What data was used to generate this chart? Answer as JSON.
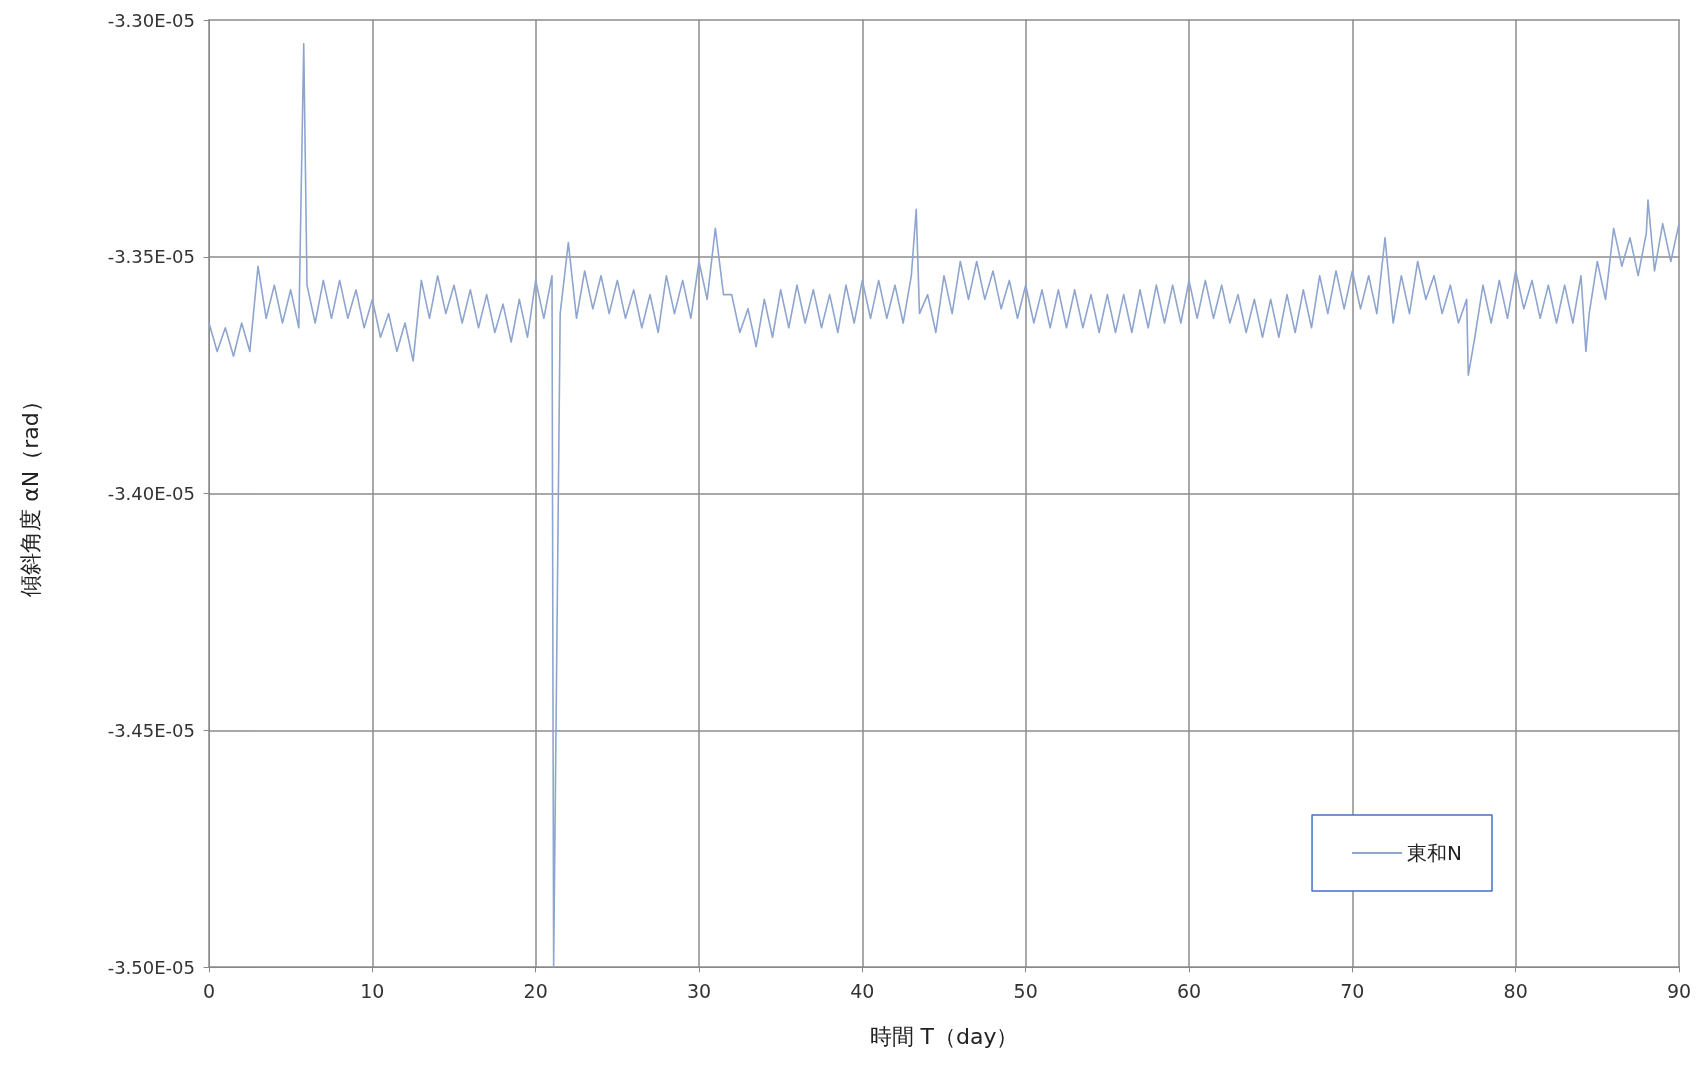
{
  "chart_data": {
    "type": "line",
    "xlabel": "時間 T（day）",
    "ylabel": "傾斜角度 αN（rad）",
    "xlim": [
      0,
      90
    ],
    "xticks": [
      0,
      10,
      20,
      30,
      40,
      50,
      60,
      70,
      80,
      90
    ],
    "ylim": [
      -3.5e-05,
      -3.3e-05
    ],
    "yticks": [
      {
        "value": -3.5e-05,
        "label": "-3.50E-05"
      },
      {
        "value": -3.45e-05,
        "label": "-3.45E-05"
      },
      {
        "value": -3.4e-05,
        "label": "-3.40E-05"
      },
      {
        "value": -3.35e-05,
        "label": "-3.35E-05"
      },
      {
        "value": -3.3e-05,
        "label": "-3.30E-05"
      }
    ],
    "grid": true,
    "legend": "bottom right",
    "marker": "none",
    "line_style": "solid",
    "series": [
      {
        "name": "東和N",
        "color": "#8ea5d0",
        "x": [
          0,
          0.5,
          1,
          1.5,
          2,
          2.5,
          3,
          3.5,
          4,
          4.5,
          5,
          5.5,
          5.8,
          6,
          6.5,
          7,
          7.5,
          8,
          8.5,
          9,
          9.5,
          10,
          10.5,
          11,
          11.5,
          12,
          12.5,
          13,
          13.5,
          14,
          14.5,
          15,
          15.5,
          16,
          16.5,
          17,
          17.5,
          18,
          18.5,
          19,
          19.5,
          20,
          20.5,
          21,
          21.1,
          21.5,
          22,
          22.5,
          23,
          23.5,
          24,
          24.5,
          25,
          25.5,
          26,
          26.5,
          27,
          27.5,
          28,
          28.5,
          29,
          29.5,
          30,
          30.5,
          31,
          31.5,
          32,
          32.5,
          33,
          33.5,
          34,
          34.5,
          35,
          35.5,
          36,
          36.5,
          37,
          37.5,
          38,
          38.5,
          39,
          39.5,
          40,
          40.5,
          41,
          41.5,
          42,
          42.5,
          43,
          43.3,
          43.5,
          44,
          44.5,
          45,
          45.5,
          46,
          46.5,
          47,
          47.5,
          48,
          48.5,
          49,
          49.5,
          50,
          50.5,
          51,
          51.5,
          52,
          52.5,
          53,
          53.5,
          54,
          54.5,
          55,
          55.5,
          56,
          56.5,
          57,
          57.5,
          58,
          58.5,
          59,
          59.5,
          60,
          60.5,
          61,
          61.5,
          62,
          62.5,
          63,
          63.5,
          64,
          64.5,
          65,
          65.5,
          66,
          66.5,
          67,
          67.5,
          68,
          68.5,
          69,
          69.5,
          70,
          70.5,
          71,
          71.5,
          72,
          72.5,
          73,
          73.5,
          74,
          74.5,
          75,
          75.5,
          76,
          76.5,
          77,
          77.1,
          77.5,
          78,
          78.5,
          79,
          79.5,
          80,
          80.5,
          81,
          81.5,
          82,
          82.5,
          83,
          83.5,
          84,
          84.3,
          84.5,
          85,
          85.5,
          86,
          86.5,
          87,
          87.5,
          88,
          88.1,
          88.5,
          89,
          89.5,
          90
        ],
        "values": [
          -3.364e-05,
          -3.37e-05,
          -3.365e-05,
          -3.371e-05,
          -3.364e-05,
          -3.37e-05,
          -3.352e-05,
          -3.363e-05,
          -3.356e-05,
          -3.364e-05,
          -3.357e-05,
          -3.365e-05,
          -3.305e-05,
          -3.356e-05,
          -3.364e-05,
          -3.355e-05,
          -3.363e-05,
          -3.355e-05,
          -3.363e-05,
          -3.357e-05,
          -3.365e-05,
          -3.359e-05,
          -3.367e-05,
          -3.362e-05,
          -3.37e-05,
          -3.364e-05,
          -3.372e-05,
          -3.355e-05,
          -3.363e-05,
          -3.354e-05,
          -3.362e-05,
          -3.356e-05,
          -3.364e-05,
          -3.357e-05,
          -3.365e-05,
          -3.358e-05,
          -3.366e-05,
          -3.36e-05,
          -3.368e-05,
          -3.359e-05,
          -3.367e-05,
          -3.355e-05,
          -3.363e-05,
          -3.354e-05,
          -3.5e-05,
          -3.362e-05,
          -3.347e-05,
          -3.363e-05,
          -3.353e-05,
          -3.361e-05,
          -3.354e-05,
          -3.362e-05,
          -3.355e-05,
          -3.363e-05,
          -3.357e-05,
          -3.365e-05,
          -3.358e-05,
          -3.366e-05,
          -3.354e-05,
          -3.362e-05,
          -3.355e-05,
          -3.363e-05,
          -3.351e-05,
          -3.359e-05,
          -3.344e-05,
          -3.358e-05,
          -3.358e-05,
          -3.366e-05,
          -3.361e-05,
          -3.369e-05,
          -3.359e-05,
          -3.367e-05,
          -3.357e-05,
          -3.365e-05,
          -3.356e-05,
          -3.364e-05,
          -3.357e-05,
          -3.365e-05,
          -3.358e-05,
          -3.366e-05,
          -3.356e-05,
          -3.364e-05,
          -3.355e-05,
          -3.363e-05,
          -3.355e-05,
          -3.363e-05,
          -3.356e-05,
          -3.364e-05,
          -3.354e-05,
          -3.34e-05,
          -3.362e-05,
          -3.358e-05,
          -3.366e-05,
          -3.354e-05,
          -3.362e-05,
          -3.351e-05,
          -3.359e-05,
          -3.351e-05,
          -3.359e-05,
          -3.353e-05,
          -3.361e-05,
          -3.355e-05,
          -3.363e-05,
          -3.356e-05,
          -3.364e-05,
          -3.357e-05,
          -3.365e-05,
          -3.357e-05,
          -3.365e-05,
          -3.357e-05,
          -3.365e-05,
          -3.358e-05,
          -3.366e-05,
          -3.358e-05,
          -3.366e-05,
          -3.358e-05,
          -3.366e-05,
          -3.357e-05,
          -3.365e-05,
          -3.356e-05,
          -3.364e-05,
          -3.356e-05,
          -3.364e-05,
          -3.355e-05,
          -3.363e-05,
          -3.355e-05,
          -3.363e-05,
          -3.356e-05,
          -3.364e-05,
          -3.358e-05,
          -3.366e-05,
          -3.359e-05,
          -3.367e-05,
          -3.359e-05,
          -3.367e-05,
          -3.358e-05,
          -3.366e-05,
          -3.357e-05,
          -3.365e-05,
          -3.354e-05,
          -3.362e-05,
          -3.353e-05,
          -3.361e-05,
          -3.353e-05,
          -3.361e-05,
          -3.354e-05,
          -3.362e-05,
          -3.346e-05,
          -3.364e-05,
          -3.354e-05,
          -3.362e-05,
          -3.351e-05,
          -3.359e-05,
          -3.354e-05,
          -3.362e-05,
          -3.356e-05,
          -3.364e-05,
          -3.359e-05,
          -3.375e-05,
          -3.367e-05,
          -3.356e-05,
          -3.364e-05,
          -3.355e-05,
          -3.363e-05,
          -3.353e-05,
          -3.361e-05,
          -3.355e-05,
          -3.363e-05,
          -3.356e-05,
          -3.364e-05,
          -3.356e-05,
          -3.364e-05,
          -3.354e-05,
          -3.37e-05,
          -3.362e-05,
          -3.351e-05,
          -3.359e-05,
          -3.344e-05,
          -3.352e-05,
          -3.346e-05,
          -3.354e-05,
          -3.345e-05,
          -3.338e-05,
          -3.353e-05,
          -3.343e-05,
          -3.351e-05,
          -3.343e-05
        ]
      }
    ]
  }
}
